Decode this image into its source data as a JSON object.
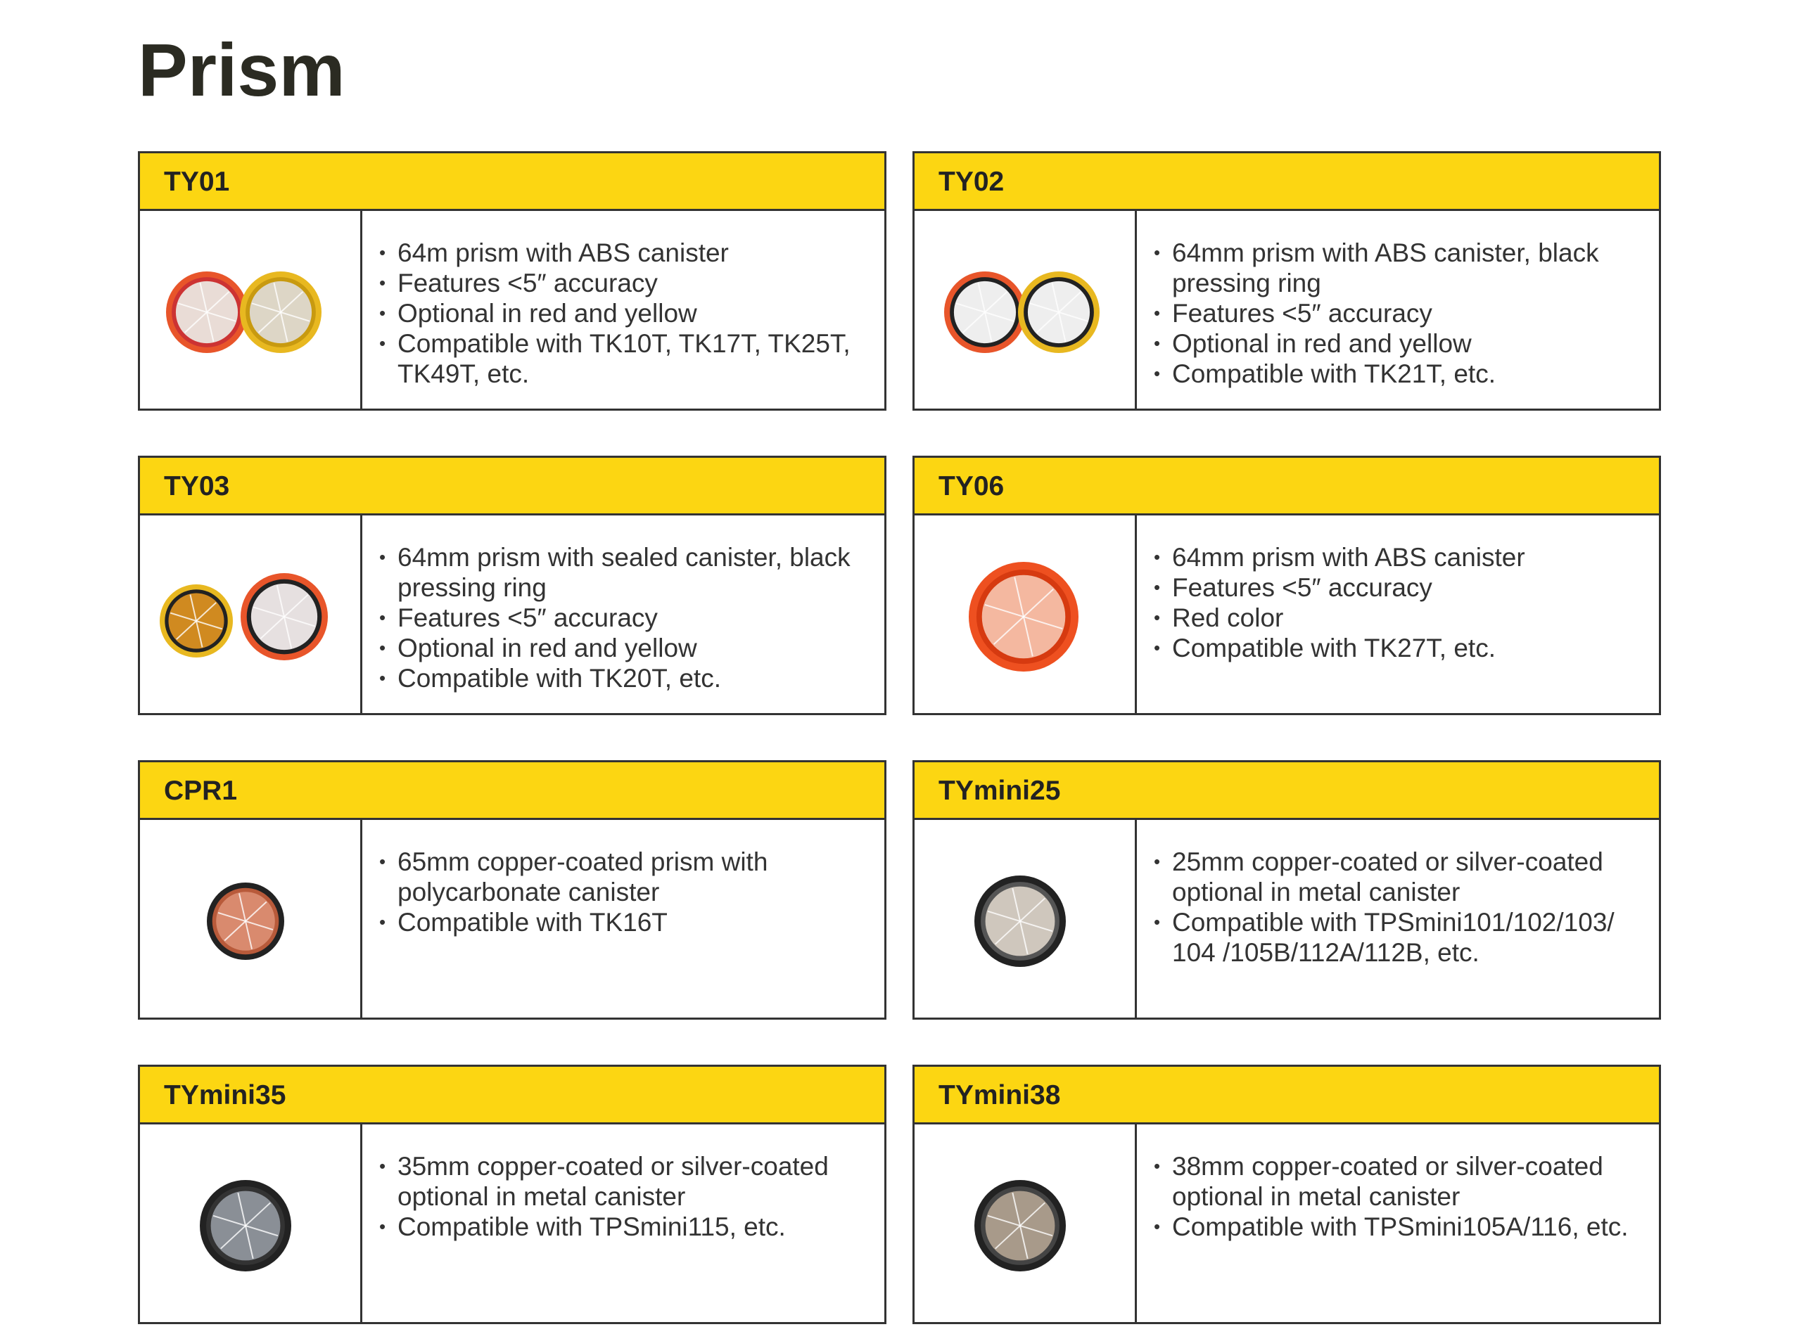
{
  "title": "Prism",
  "products": [
    {
      "name": "TY01",
      "features": [
        "64m prism with ABS canister",
        "Features <5″ accuracy",
        "Optional in red and yellow",
        "Compatible with TK10T, TK17T, TK25T, TK49T, etc."
      ]
    },
    {
      "name": "TY02",
      "features": [
        "64mm prism with ABS canister, black pressing ring",
        "Features <5″ accuracy",
        "Optional in red and yellow",
        "Compatible with TK21T, etc."
      ]
    },
    {
      "name": "TY03",
      "features": [
        "64mm prism with sealed canister, black pressing ring",
        "Features <5″ accuracy",
        "Optional in red and yellow",
        "Compatible with TK20T, etc."
      ]
    },
    {
      "name": "TY06",
      "features": [
        "64mm prism with ABS canister",
        "Features <5″ accuracy",
        "Red color",
        "Compatible with TK27T, etc."
      ]
    },
    {
      "name": "CPR1",
      "features": [
        "65mm copper-coated prism with polycarbonate canister",
        "Compatible with TK16T"
      ]
    },
    {
      "name": "TYmini25",
      "features": [
        "25mm copper-coated or silver-coated optional in metal canister",
        "Compatible with TPSmini101/102/103/ 104 /105B/112A/112B, etc."
      ]
    },
    {
      "name": "TYmini35",
      "features": [
        "35mm copper-coated or silver-coated optional in metal canister",
        "Compatible with TPSmini115, etc."
      ]
    },
    {
      "name": "TYmini38",
      "features": [
        "38mm copper-coated or silver-coated optional in metal canister",
        "Compatible with TPSmini105A/116, etc."
      ]
    }
  ]
}
